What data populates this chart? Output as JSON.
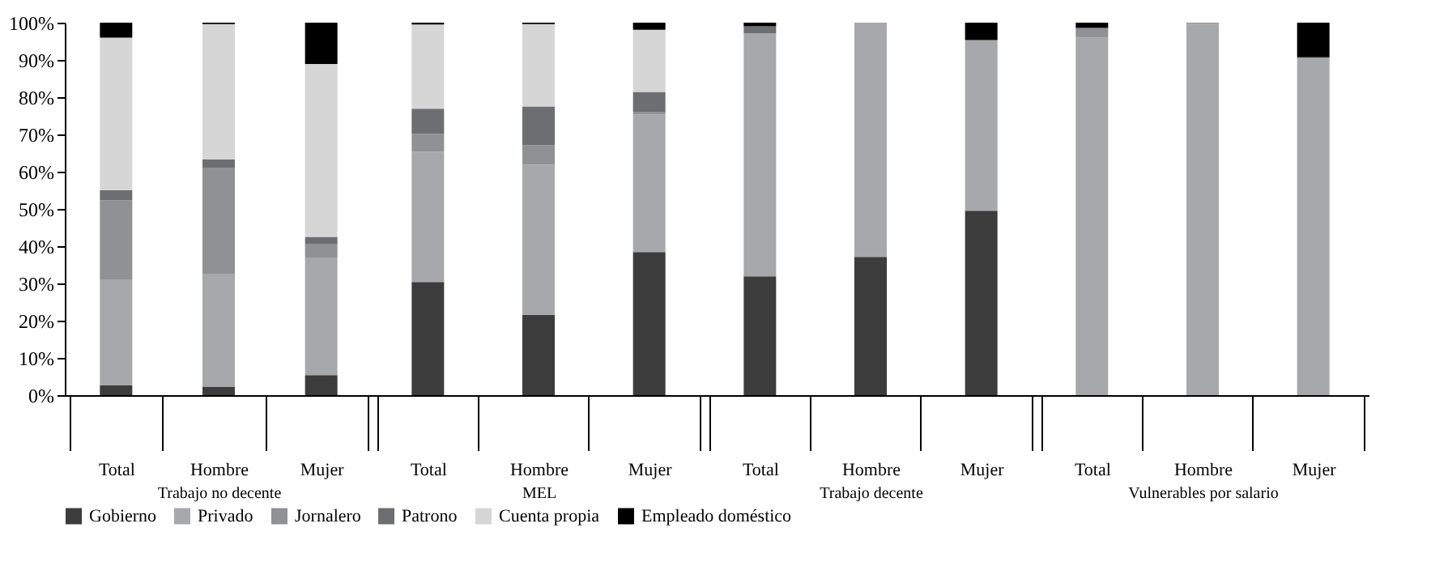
{
  "chart_data": [
    {
      "type": "bar",
      "stacked": true,
      "xlabel": "Trabajo no decente",
      "categories": [
        "Total",
        "Hombre",
        "Mujer"
      ],
      "ylim": [
        0,
        100
      ],
      "yticks": [
        {
          "value": 0,
          "label": "0%"
        },
        {
          "value": 10,
          "label": "10%"
        },
        {
          "value": 20,
          "label": "20%"
        },
        {
          "value": 30,
          "label": "30%"
        },
        {
          "value": 40,
          "label": "40%"
        },
        {
          "value": 50,
          "label": "50%"
        },
        {
          "value": 60,
          "label": "60%"
        },
        {
          "value": 70,
          "label": "70%"
        },
        {
          "value": 80,
          "label": "80%"
        },
        {
          "value": 90,
          "label": "90%"
        },
        {
          "value": 100,
          "label": "100%"
        }
      ],
      "legend": "bottom",
      "grid": false,
      "series": [
        {
          "name": "Gobierno",
          "color": "#3c3c3c",
          "values": [
            2.6,
            2.3,
            5.4
          ]
        },
        {
          "name": "Privado",
          "color": "#a7a8ab",
          "values": [
            28.3,
            30.3,
            31.4
          ]
        },
        {
          "name": "Jornalero",
          "color": "#909194",
          "values": [
            21.4,
            28.5,
            3.7
          ]
        },
        {
          "name": "Patrono",
          "color": "#6d6e71",
          "values": [
            2.7,
            2.2,
            2.0
          ]
        },
        {
          "name": "Cuenta propia",
          "color": "#d6d6d6",
          "values": [
            41.0,
            36.3,
            46.4
          ]
        },
        {
          "name": "Empleado doméstico",
          "color": "#000000",
          "values": [
            4.0,
            0.4,
            11.1
          ]
        }
      ]
    },
    {
      "type": "bar",
      "stacked": true,
      "xlabel": "MEL",
      "categories": [
        "Total",
        "Hombre",
        "Mujer"
      ],
      "ylim": [
        0,
        100
      ],
      "tick_labels": "x",
      "grid": false,
      "series": [
        {
          "color": "#3c3c3c",
          "values": [
            30.4,
            21.6,
            38.4
          ]
        },
        {
          "color": "#a7a8ab",
          "values": [
            34.9,
            40.3,
            37.0
          ]
        },
        {
          "color": "#909194",
          "values": [
            4.8,
            5.2,
            0.7
          ]
        },
        {
          "color": "#6d6e71",
          "values": [
            6.8,
            10.4,
            5.3
          ]
        },
        {
          "color": "#d6d6d6",
          "values": [
            22.6,
            22.1,
            16.7
          ]
        },
        {
          "color": "#000000",
          "values": [
            0.5,
            0.4,
            1.9
          ]
        }
      ]
    },
    {
      "type": "bar",
      "stacked": true,
      "xlabel": "Trabajo decente",
      "categories": [
        "Total",
        "Hombre",
        "Mujer"
      ],
      "ylim": [
        0,
        100
      ],
      "tick_labels": "x",
      "grid": false,
      "series": [
        {
          "color": "#3c3c3c",
          "values": [
            31.9,
            37.1,
            49.5
          ]
        },
        {
          "color": "#a7a8ab",
          "values": [
            65.2,
            62.9,
            45.8
          ]
        },
        {
          "color": "#909194",
          "values": [
            0,
            0,
            0
          ]
        },
        {
          "color": "#6d6e71",
          "values": [
            1.9,
            0,
            0
          ]
        },
        {
          "color": "#d6d6d6",
          "values": [
            0,
            0,
            0
          ]
        },
        {
          "color": "#000000",
          "values": [
            1.0,
            0,
            4.7
          ]
        }
      ]
    },
    {
      "type": "bar",
      "stacked": true,
      "xlabel": "Vulnerables por salario",
      "categories": [
        "Total",
        "Hombre",
        "Mujer"
      ],
      "ylim": [
        0,
        100
      ],
      "tick_labels": "x",
      "grid": false,
      "series": [
        {
          "color": "#3c3c3c",
          "values": [
            0,
            0,
            0
          ]
        },
        {
          "color": "#a7a8ab",
          "values": [
            96.0,
            99.7,
            90.3
          ]
        },
        {
          "color": "#909194",
          "values": [
            2.6,
            0.3,
            0.4
          ]
        },
        {
          "color": "#6d6e71",
          "values": [
            0,
            0,
            0
          ]
        },
        {
          "color": "#d6d6d6",
          "values": [
            0,
            0,
            0
          ]
        },
        {
          "color": "#000000",
          "values": [
            1.4,
            0,
            9.3
          ]
        }
      ]
    }
  ]
}
